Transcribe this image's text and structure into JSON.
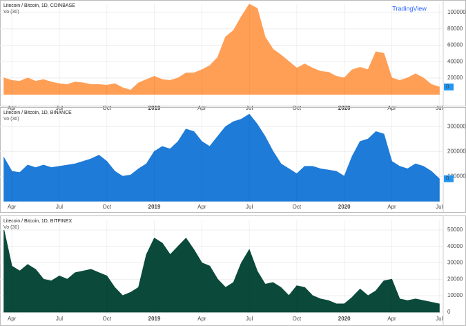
{
  "logo": "TradingView",
  "chart_data": [
    {
      "type": "area",
      "title": "Litecoin / Bitcoin, 1D, COINBASE",
      "subtitle": "Vo (30)",
      "color": "#ff9f56",
      "last_label": "0",
      "categories": [
        null,
        "Apr",
        null,
        null,
        null,
        null,
        null,
        "Jul",
        null,
        null,
        null,
        null,
        null,
        "Oct",
        null,
        null,
        null,
        null,
        null,
        "2019",
        null,
        null,
        null,
        null,
        null,
        "Apr",
        null,
        null,
        null,
        null,
        null,
        "Jul",
        null,
        null,
        null,
        null,
        null,
        "Oct",
        null,
        null,
        null,
        null,
        null,
        "2020",
        null,
        null,
        null,
        null,
        null,
        "Apr",
        null,
        null,
        null,
        null,
        null,
        "Jul"
      ],
      "values": [
        20000,
        17000,
        16000,
        20000,
        16000,
        18000,
        15000,
        13000,
        12000,
        15000,
        14000,
        12000,
        12000,
        11000,
        13000,
        8000,
        5000,
        14000,
        18000,
        22000,
        18000,
        17000,
        20000,
        26000,
        26000,
        30000,
        35000,
        45000,
        70000,
        78000,
        95000,
        110000,
        105000,
        70000,
        55000,
        48000,
        40000,
        32000,
        37000,
        32000,
        28000,
        27000,
        22000,
        20000,
        30000,
        33000,
        30000,
        52000,
        50000,
        20000,
        17000,
        20000,
        25000,
        20000,
        12000,
        9000
      ],
      "ylim": [
        -13000,
        111000
      ],
      "yticks": [
        20000,
        40000,
        60000,
        80000,
        100000
      ],
      "grid": true
    },
    {
      "type": "area",
      "title": "Litecoin / Bitcoin, 1D, BINANCE",
      "subtitle": "Vo (30)",
      "color": "#1e7bd8",
      "last_label": "0",
      "categories": [
        null,
        "Apr",
        null,
        null,
        null,
        null,
        null,
        "Jul",
        null,
        null,
        null,
        null,
        null,
        "Oct",
        null,
        null,
        null,
        null,
        null,
        "2019",
        null,
        null,
        null,
        null,
        null,
        "Apr",
        null,
        null,
        null,
        null,
        null,
        "Jul",
        null,
        null,
        null,
        null,
        null,
        "Oct",
        null,
        null,
        null,
        null,
        null,
        "2020",
        null,
        null,
        null,
        null,
        null,
        "Apr",
        null,
        null,
        null,
        null,
        null,
        "Jul"
      ],
      "values": [
        175000,
        120000,
        115000,
        145000,
        135000,
        145000,
        135000,
        140000,
        145000,
        150000,
        160000,
        170000,
        185000,
        160000,
        120000,
        100000,
        105000,
        130000,
        150000,
        200000,
        220000,
        210000,
        240000,
        290000,
        280000,
        240000,
        220000,
        260000,
        300000,
        320000,
        330000,
        350000,
        310000,
        260000,
        200000,
        150000,
        130000,
        110000,
        140000,
        140000,
        130000,
        125000,
        120000,
        100000,
        180000,
        240000,
        250000,
        280000,
        270000,
        160000,
        140000,
        130000,
        150000,
        140000,
        120000,
        90000
      ],
      "ylim": [
        -5000,
        365000
      ],
      "yticks": [
        100000,
        200000,
        300000
      ],
      "grid": true
    },
    {
      "type": "area",
      "title": "Litecoin / Bitcoin, 1D, BITFINEX",
      "subtitle": "Vo (30)",
      "color": "#0b4a3a",
      "categories": [
        null,
        "Apr",
        null,
        null,
        null,
        null,
        null,
        "Jul",
        null,
        null,
        null,
        null,
        null,
        "Oct",
        null,
        null,
        null,
        null,
        null,
        "2019",
        null,
        null,
        null,
        null,
        null,
        "Apr",
        null,
        null,
        null,
        null,
        null,
        "Jul",
        null,
        null,
        null,
        null,
        null,
        "Oct",
        null,
        null,
        null,
        null,
        null,
        "2020",
        null,
        null,
        null,
        null,
        null,
        "Apr",
        null,
        null,
        null,
        null,
        null,
        "Jul"
      ],
      "values": [
        50000,
        28000,
        25000,
        29000,
        26000,
        20000,
        19000,
        22000,
        20000,
        24000,
        25000,
        26000,
        24000,
        22000,
        15000,
        10000,
        12000,
        15000,
        35000,
        45000,
        42000,
        35000,
        40000,
        45000,
        38000,
        30000,
        28000,
        20000,
        15000,
        18000,
        30000,
        38000,
        25000,
        17000,
        18000,
        15000,
        10000,
        16000,
        15000,
        10000,
        8000,
        7000,
        5000,
        5000,
        9000,
        14000,
        10000,
        13000,
        19000,
        20000,
        8000,
        7000,
        8000,
        7000,
        6000,
        5000
      ],
      "ylim": [
        -1300,
        56300
      ],
      "yticks": [
        0,
        10000,
        20000,
        30000,
        40000,
        50000
      ],
      "grid": true
    }
  ]
}
